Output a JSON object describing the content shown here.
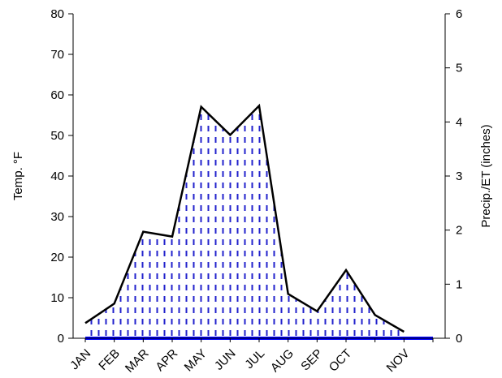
{
  "chart_data": {
    "type": "area",
    "categories": [
      "JAN",
      "FEB",
      "MAR",
      "APR",
      "MAY",
      "JUN",
      "JUL",
      "AUG",
      "SEP",
      "OCT",
      "NOV"
    ],
    "x_positions": [
      1,
      2,
      3,
      4,
      5,
      6,
      7,
      8,
      9,
      10,
      11,
      12,
      13
    ],
    "series": [
      {
        "axis": "y2",
        "x": [
          1,
          2,
          3,
          4,
          5,
          6,
          7,
          8,
          9,
          10,
          11,
          12,
          13
        ],
        "values": [
          0.28,
          0.64,
          1.97,
          1.88,
          4.28,
          3.76,
          4.3,
          0.82,
          0.5,
          1.26,
          0.43,
          0.12,
          null
        ],
        "style": "dashed-blue-fill-black-outline"
      },
      {
        "axis": "y2",
        "x": [
          1,
          13
        ],
        "values": [
          0,
          0
        ],
        "style": "blue-baseline"
      }
    ],
    "x_tick_labels": [
      {
        "x": 1,
        "label": "JAN"
      },
      {
        "x": 2,
        "label": "FEB"
      },
      {
        "x": 3,
        "label": "MAR"
      },
      {
        "x": 4,
        "label": "APR"
      },
      {
        "x": 5,
        "label": "MAY"
      },
      {
        "x": 6,
        "label": "JUN"
      },
      {
        "x": 7,
        "label": "JUL"
      },
      {
        "x": 8,
        "label": "AUG"
      },
      {
        "x": 9,
        "label": "SEP"
      },
      {
        "x": 10,
        "label": "OCT"
      },
      {
        "x": 12,
        "label": "NOV"
      }
    ],
    "xlim": [
      1,
      13
    ],
    "y_left": {
      "label": "Temp. °F",
      "ylim": [
        0,
        80
      ],
      "ticks": [
        0,
        10,
        20,
        30,
        40,
        50,
        60,
        70,
        80
      ]
    },
    "y_right": {
      "label": "Precip./ET (inches)",
      "ylim": [
        0,
        6
      ],
      "ticks": [
        0,
        1,
        2,
        3,
        4,
        5,
        6
      ]
    },
    "grid": false,
    "legend": "none",
    "colors": {
      "fill_pattern": "#2222cc",
      "outline": "#000000",
      "baseline": "#0000ff"
    }
  }
}
